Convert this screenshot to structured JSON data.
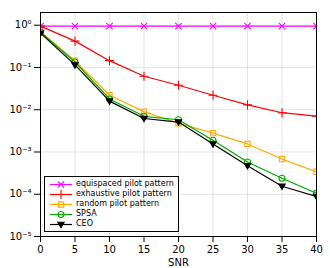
{
  "chart_data": {
    "type": "line",
    "log": "y",
    "grid": true,
    "legend": "lower left",
    "x": [
      0,
      5,
      10,
      15,
      20,
      25,
      30,
      35,
      40
    ],
    "xlabel": "SNR",
    "xlim": [
      0,
      40
    ],
    "xticks": [
      0,
      5,
      10,
      15,
      20,
      25,
      30,
      35,
      40
    ],
    "ylim": [
      1e-05,
      2.0
    ],
    "yticks": [
      {
        "value": 1e-05,
        "label": "10⁻⁵"
      },
      {
        "value": 0.0001,
        "label": "10⁻⁴"
      },
      {
        "value": 0.001,
        "label": "10⁻³"
      },
      {
        "value": 0.01,
        "label": "10⁻²"
      },
      {
        "value": 0.1,
        "label": "10⁻¹"
      },
      {
        "value": 1,
        "label": "10⁰"
      }
    ],
    "series": [
      {
        "name": "equispaced pilot pattern",
        "color": "#ff00ff",
        "marker": "x",
        "line_style": "solid",
        "values": [
          0.95,
          0.95,
          0.95,
          0.95,
          0.95,
          0.95,
          0.95,
          0.95,
          0.95
        ]
      },
      {
        "name": "exhaustive pilot pattern",
        "color": "#ff0000",
        "marker": "+",
        "line_style": "solid",
        "values": [
          0.95,
          0.42,
          0.145,
          0.062,
          0.038,
          0.022,
          0.013,
          0.0085,
          0.007
        ]
      },
      {
        "name": "random pilot pattern",
        "color": "#ffaa00",
        "marker": "square",
        "line_style": "solid",
        "values": [
          0.7,
          0.145,
          0.022,
          0.009,
          0.0048,
          0.0028,
          0.00155,
          0.00068,
          0.00034
        ]
      },
      {
        "name": "SPSA",
        "color": "#00aa00",
        "marker": "circle",
        "line_style": "solid",
        "values": [
          0.68,
          0.135,
          0.018,
          0.007,
          0.0058,
          0.0019,
          0.00058,
          0.00024,
          0.000105
        ]
      },
      {
        "name": "CEO",
        "color": "#000000",
        "marker": "triangle-down",
        "line_style": "solid",
        "values": [
          0.65,
          0.115,
          0.016,
          0.0062,
          0.0051,
          0.00155,
          0.00047,
          0.000155,
          8.8e-05
        ]
      }
    ]
  }
}
